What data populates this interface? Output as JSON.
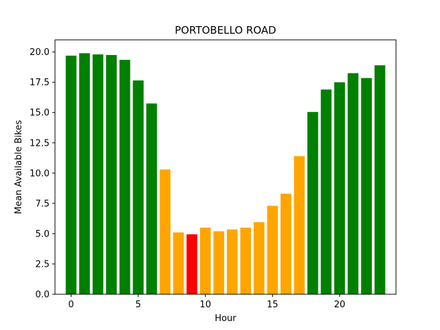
{
  "chart_data": {
    "type": "bar",
    "title": "PORTOBELLO ROAD",
    "xlabel": "Hour",
    "ylabel": "Mean Available Bikes",
    "xlim": [
      -1.2,
      24.2
    ],
    "ylim": [
      0,
      21.0
    ],
    "x_ticks": [
      0,
      5,
      10,
      15,
      20
    ],
    "y_ticks": [
      "0.0",
      "2.5",
      "5.0",
      "7.5",
      "10.0",
      "12.5",
      "15.0",
      "17.5",
      "20.0"
    ],
    "grid": false,
    "legend": "none",
    "x": [
      0,
      1,
      2,
      3,
      4,
      5,
      6,
      7,
      8,
      9,
      10,
      11,
      12,
      13,
      14,
      15,
      16,
      17,
      18,
      19,
      20,
      21,
      22,
      23
    ],
    "values": [
      19.7,
      19.9,
      19.8,
      19.75,
      19.35,
      17.65,
      15.75,
      10.3,
      5.1,
      4.95,
      5.5,
      5.2,
      5.35,
      5.5,
      5.95,
      7.3,
      8.3,
      11.4,
      15.05,
      16.9,
      17.5,
      18.25,
      17.85,
      18.9
    ],
    "colors": [
      "green",
      "green",
      "green",
      "green",
      "green",
      "green",
      "green",
      "orange",
      "orange",
      "red",
      "orange",
      "orange",
      "orange",
      "orange",
      "orange",
      "orange",
      "orange",
      "orange",
      "green",
      "green",
      "green",
      "green",
      "green",
      "green"
    ],
    "palette": {
      "green": "#008000",
      "orange": "#ffa500",
      "red": "#ff0000"
    }
  }
}
